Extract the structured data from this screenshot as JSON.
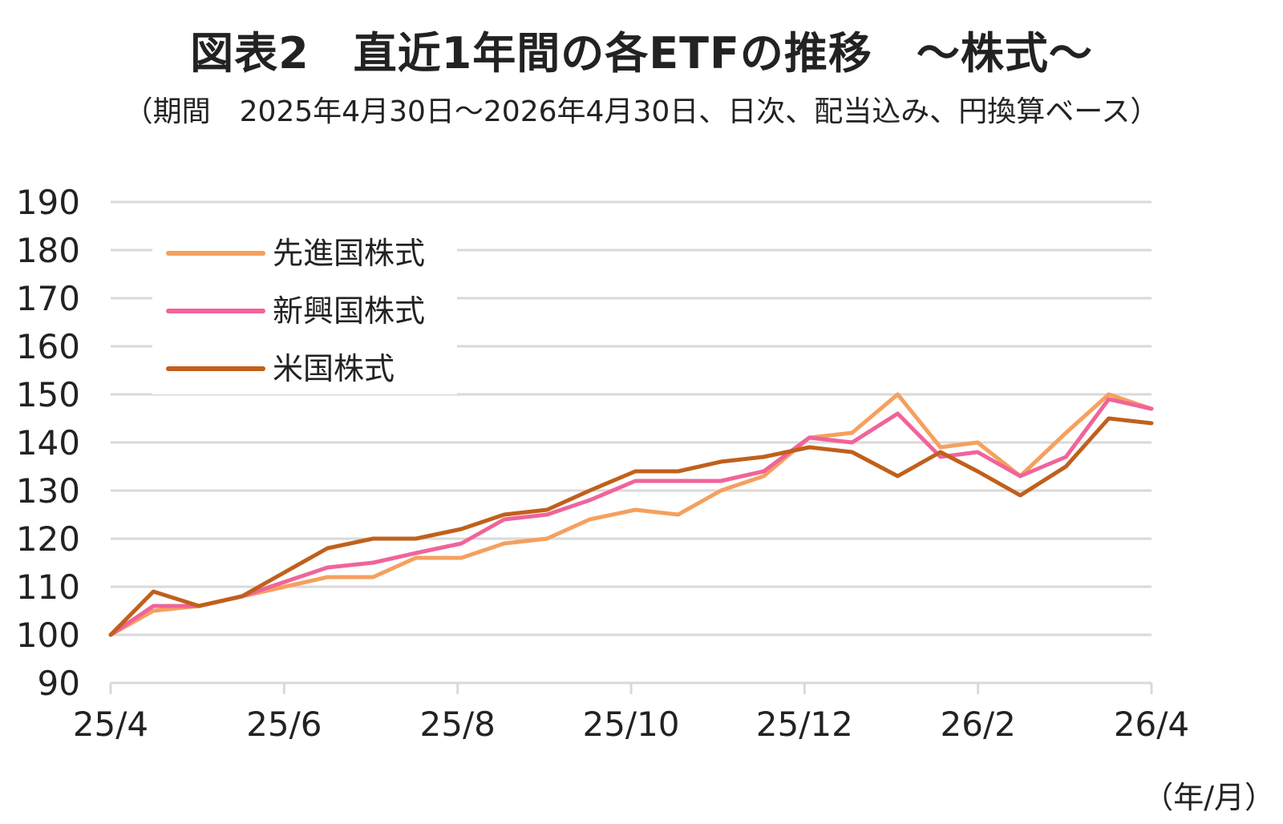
{
  "chart_data": {
    "type": "line",
    "title": "図表2　直近1年間の各ETFの推移　～株式～",
    "subtitle": "（期間　2025年4月30日～2026年4月30日、日次、配当込み、円換算ベース）",
    "xlabel": "（年/月）",
    "ylabel": "",
    "ylim": [
      90,
      190
    ],
    "yticks": [
      90,
      100,
      110,
      120,
      130,
      140,
      150,
      160,
      170,
      180,
      190
    ],
    "x_tick_labels": [
      "25/4",
      "25/6",
      "25/8",
      "25/10",
      "25/12",
      "26/2",
      "26/4"
    ],
    "x": [
      "2025-04-30",
      "2025-05-15",
      "2025-05-31",
      "2025-06-15",
      "2025-06-30",
      "2025-07-15",
      "2025-07-31",
      "2025-08-15",
      "2025-08-31",
      "2025-09-15",
      "2025-09-30",
      "2025-10-15",
      "2025-10-31",
      "2025-11-15",
      "2025-11-30",
      "2025-12-15",
      "2025-12-31",
      "2026-01-15",
      "2026-01-31",
      "2026-02-15",
      "2026-02-28",
      "2026-03-15",
      "2026-03-31",
      "2026-04-15",
      "2026-04-30"
    ],
    "grid": true,
    "legend_position": "top-left",
    "series": [
      {
        "name": "先進国株式",
        "color": "#F5A05E",
        "values": [
          100,
          105,
          106,
          108,
          110,
          112,
          112,
          116,
          116,
          119,
          120,
          124,
          126,
          125,
          130,
          133,
          141,
          142,
          150,
          139,
          140,
          133,
          142,
          150,
          147
        ]
      },
      {
        "name": "新興国株式",
        "color": "#F0649A",
        "values": [
          100,
          106,
          106,
          108,
          111,
          114,
          115,
          117,
          119,
          124,
          125,
          128,
          132,
          132,
          132,
          134,
          141,
          140,
          146,
          137,
          138,
          133,
          137,
          149,
          147
        ]
      },
      {
        "name": "米国株式",
        "color": "#C0601C",
        "values": [
          100,
          109,
          106,
          108,
          113,
          118,
          120,
          120,
          122,
          125,
          126,
          130,
          134,
          134,
          136,
          137,
          139,
          138,
          133,
          138,
          134,
          129,
          135,
          145,
          144
        ]
      }
    ]
  }
}
